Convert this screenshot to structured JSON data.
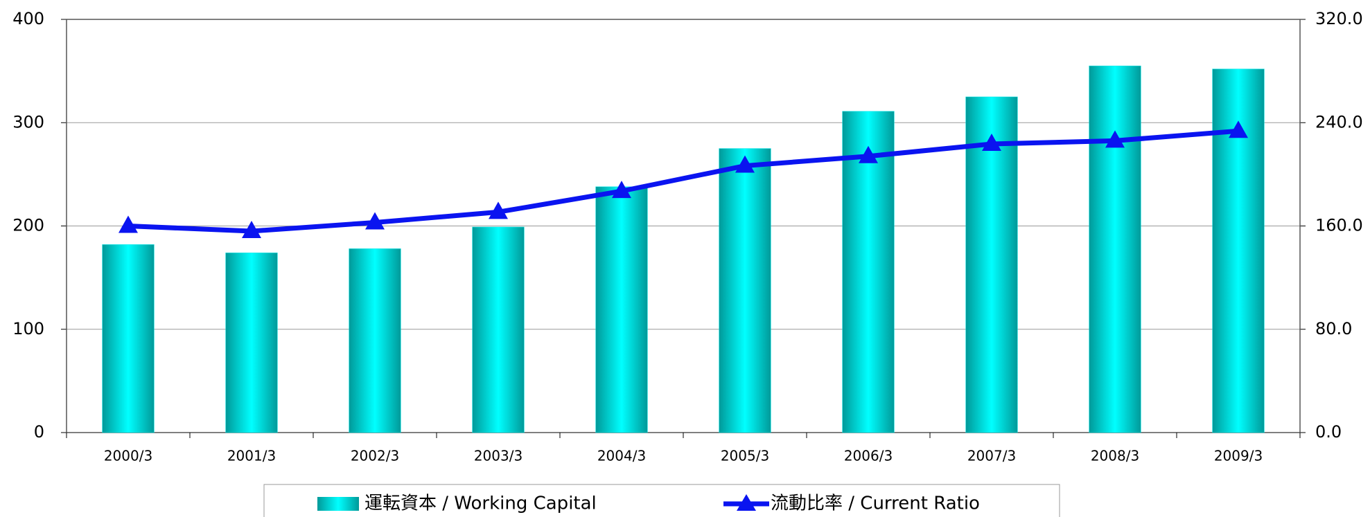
{
  "chart_data": {
    "type": "bar",
    "categories": [
      "2000/3",
      "2001/3",
      "2002/3",
      "2003/3",
      "2004/3",
      "2005/3",
      "2006/3",
      "2007/3",
      "2008/3",
      "2009/3"
    ],
    "series": [
      {
        "name": "運転資本 / Working Capital",
        "type": "bar",
        "color": "#00e8e8",
        "values": [
          182,
          174,
          178,
          199,
          238,
          275,
          311,
          325,
          355,
          352
        ]
      },
      {
        "name": "流動比率 / Current Ratio",
        "type": "line",
        "axis": "y2",
        "color": "#0a14f0",
        "values": [
          160,
          156,
          162.7,
          170.8,
          187,
          206.6,
          214,
          223.5,
          226,
          233.6
        ]
      }
    ],
    "ylim": [
      0,
      400
    ],
    "yticks": [
      0,
      100,
      200,
      300,
      400
    ],
    "y2lim": [
      0,
      320
    ],
    "y2ticks": [
      {
        "value": 0,
        "label": "0.0"
      },
      {
        "value": 80,
        "label": "80.0"
      },
      {
        "value": 160,
        "label": "160.0"
      },
      {
        "value": 240,
        "label": "240.0"
      },
      {
        "value": 320,
        "label": "320.0"
      }
    ],
    "grid": true,
    "legend": "bottom"
  }
}
